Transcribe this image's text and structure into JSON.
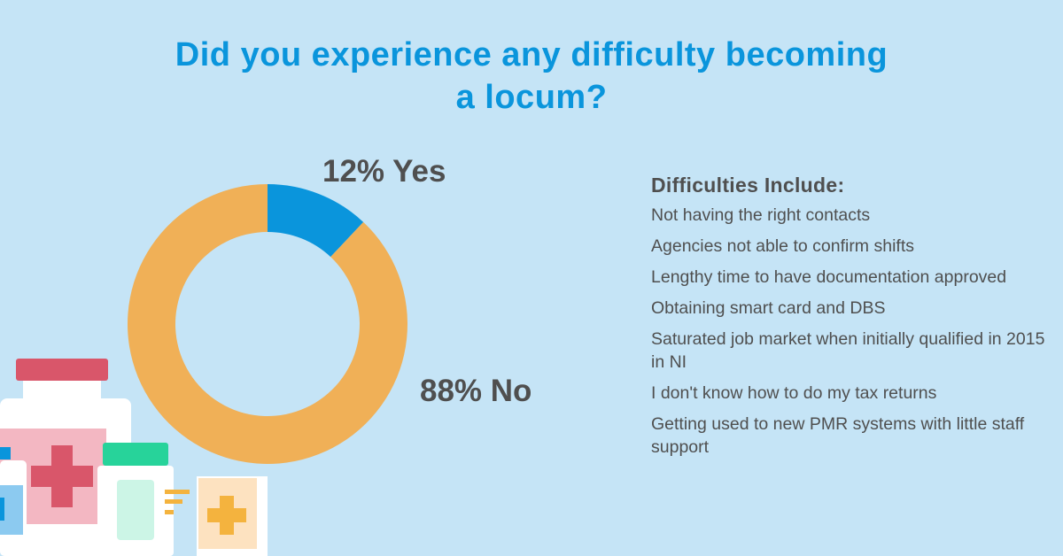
{
  "title": "Did you experience any difficulty becoming a locum?",
  "title_lines": [
    "Did you experience any difficulty becoming",
    "a locum?"
  ],
  "colors": {
    "background": "#c5e4f6",
    "accent": "#0a95dc",
    "yes": "#0a95dc",
    "no": "#f0b057",
    "text": "#4f4f4f"
  },
  "chart_data": {
    "type": "pie",
    "variant": "donut",
    "title": "Did you experience any difficulty becoming a locum?",
    "slices": [
      {
        "name": "Yes",
        "value": 12,
        "label": "12% Yes",
        "color": "#0a95dc"
      },
      {
        "name": "No",
        "value": 88,
        "label": "88% No",
        "color": "#f0b057"
      }
    ],
    "units": "%"
  },
  "difficulties": {
    "heading": "Difficulties Include:",
    "items": [
      "Not having the right contacts",
      "Agencies not able to confirm shifts",
      "Lengthy time to have documentation approved",
      "Obtaining smart card and DBS",
      "Saturated job market when initially qualified in 2015 in NI",
      "I don't know how to do my tax returns",
      "Getting used to new PMR systems with little staff support"
    ]
  },
  "illustration": {
    "icon": "medicine-bottles-icon"
  }
}
